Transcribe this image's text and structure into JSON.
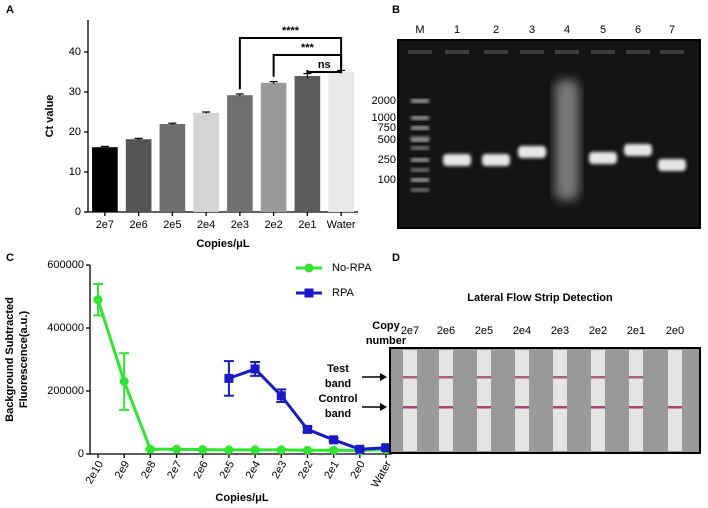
{
  "panels": [
    "A",
    "B",
    "C",
    "D"
  ],
  "chart_data": [
    {
      "type": "bar",
      "ylabel": "Ct value",
      "xlabel": "Copies/μL",
      "categories": [
        "2e7",
        "2e6",
        "2e5",
        "2e4",
        "2e3",
        "2e2",
        "2e1",
        "Water"
      ],
      "values": [
        16.2,
        18.2,
        22.0,
        24.8,
        29.2,
        32.3,
        34.0,
        35.0
      ],
      "errors": [
        0.2,
        0.2,
        0.2,
        0.2,
        0.3,
        0.3,
        0.6,
        0.4
      ],
      "colors": [
        "#000000",
        "#555555",
        "#6e6e6e",
        "#d4d4d4",
        "#707070",
        "#9a9a9a",
        "#5a5a5a",
        "#e8e8e8"
      ],
      "ylim": [
        0,
        48
      ],
      "yticks": [
        0,
        10,
        20,
        30,
        40
      ],
      "annotations": [
        "****",
        "***",
        "ns"
      ]
    },
    {
      "type": "line",
      "ylabel": [
        "Background Subtracted",
        "Fluorescence(a.u.)"
      ],
      "xlabel": "Copies/μL",
      "categories": [
        "2e10",
        "2e9",
        "2e8",
        "2e7",
        "2e6",
        "2e5",
        "2e4",
        "2e3",
        "2e2",
        "2e1",
        "2e0",
        "Water"
      ],
      "series": [
        {
          "name": "No-RPA",
          "color": "#2ee62e",
          "values": [
            490000,
            230000,
            15000,
            15000,
            14000,
            13000,
            13000,
            13000,
            12000,
            12000,
            11000,
            14000
          ],
          "errors": [
            50000,
            90000,
            3000,
            2000,
            2000,
            2000,
            2000,
            2000,
            2000,
            2000,
            2000,
            3000
          ]
        },
        {
          "name": "RPA",
          "color": "#1a1acc",
          "values": [
            null,
            null,
            null,
            null,
            null,
            240000,
            270000,
            185000,
            78000,
            45000,
            15000,
            20000
          ],
          "errors": [
            null,
            null,
            null,
            null,
            null,
            55000,
            22000,
            20000,
            8000,
            5000,
            3000,
            8000
          ]
        }
      ],
      "ylim": [
        0,
        600000
      ],
      "yticks": [
        0,
        200000,
        400000,
        600000
      ],
      "legend": "upper right"
    }
  ],
  "gel": {
    "lanes": [
      "M",
      "1",
      "2",
      "3",
      "4",
      "5",
      "6",
      "7"
    ],
    "ladder": [
      "2000",
      "1000",
      "750",
      "500",
      "250",
      "100"
    ]
  },
  "strip": {
    "title": "Lateral Flow Strip Detection",
    "row_label": [
      "Copy",
      "number"
    ],
    "labels": [
      "2e7",
      "2e6",
      "2e5",
      "2e4",
      "2e3",
      "2e2",
      "2e1",
      "2e0"
    ],
    "test_band": [
      true,
      true,
      true,
      true,
      true,
      true,
      true,
      false
    ],
    "bands": [
      [
        "Test",
        "band"
      ],
      [
        "Control",
        "band"
      ]
    ]
  }
}
